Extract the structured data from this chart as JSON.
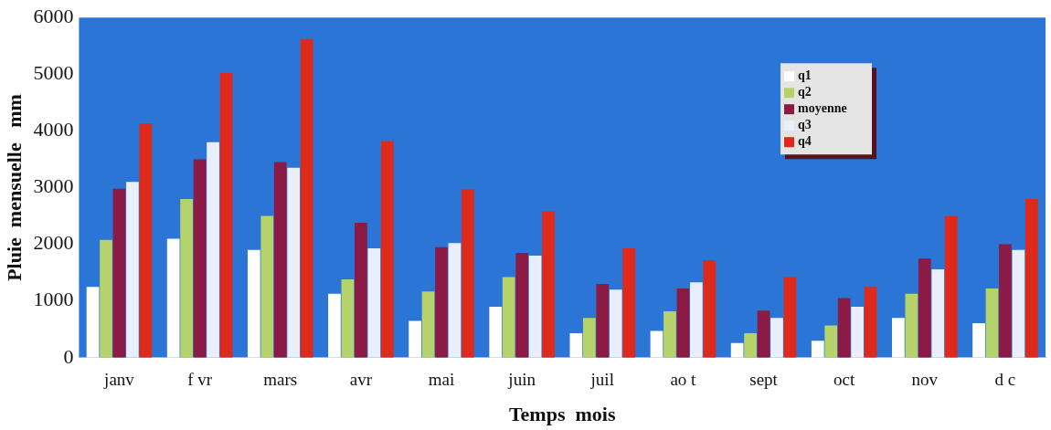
{
  "chart_data": {
    "type": "bar",
    "xlabel": "Temps  mois",
    "ylabel": "Pluie  mensuelle   mm",
    "categories": [
      "janv",
      "f vr",
      "mars",
      "avr",
      "mai",
      "juin",
      "juil",
      "ao t",
      "sept",
      "oct",
      "nov",
      "d c"
    ],
    "series": [
      {
        "name": "q1",
        "color": "#ffffff",
        "values": [
          1250,
          2100,
          1900,
          1130,
          650,
          900,
          430,
          470,
          260,
          300,
          700,
          610
        ]
      },
      {
        "name": "q2",
        "color": "#b5d36a",
        "values": [
          2080,
          2800,
          2500,
          1380,
          1170,
          1420,
          700,
          820,
          430,
          570,
          1130,
          1220
        ]
      },
      {
        "name": "moyenne",
        "color": "#8b1a45",
        "values": [
          2980,
          3500,
          3450,
          2380,
          1950,
          1850,
          1300,
          1220,
          830,
          1050,
          1750,
          2000
        ]
      },
      {
        "name": "q3",
        "color": "#e8eefa",
        "values": [
          3100,
          3800,
          3350,
          1930,
          2020,
          1800,
          1200,
          1330,
          700,
          900,
          1560,
          1900
        ]
      },
      {
        "name": "q4",
        "color": "#dd2a1a",
        "values": [
          4130,
          5020,
          5620,
          3820,
          2970,
          2580,
          1930,
          1720,
          1420,
          1250,
          2500,
          2800
        ]
      }
    ],
    "ylim": [
      0,
      6000
    ],
    "yticks": [
      0,
      1000,
      2000,
      3000,
      4000,
      5000,
      6000
    ],
    "grid": false,
    "legend": "top right"
  }
}
